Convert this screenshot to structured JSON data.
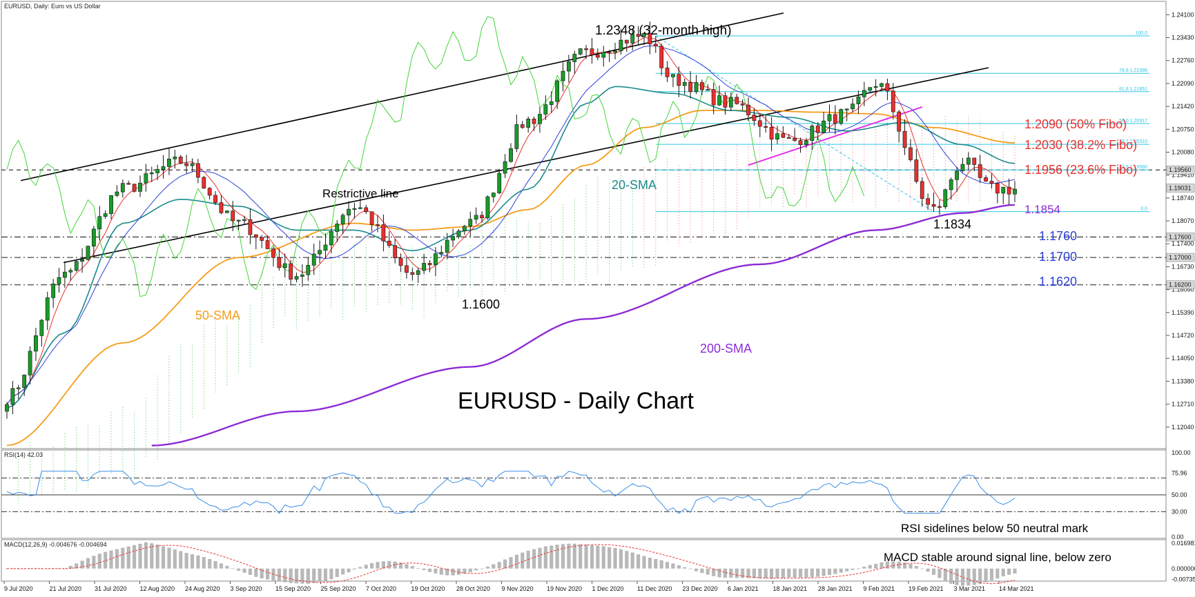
{
  "header": {
    "title": "EURUSD, Daily: Euro vs US Dollar"
  },
  "main_title": "EURUSD - Daily Chart",
  "rsi_header": "RSI(14) 42.03",
  "macd_header": "MACD(12,26,9) -0.004676 -0.004694",
  "rsi_note": "RSI sidelines below 50 neutral mark",
  "macd_note": "MACD stable around signal line, below zero",
  "colors": {
    "bull": "#1a9b2a",
    "bear": "#e8302e",
    "sma20": "#1a8a8a",
    "sma50": "#f59c1a",
    "sma200": "#8d2bd6",
    "tenkan": "#e8302e",
    "kijun": "#2b3fd6",
    "chikou": "#43d43a",
    "fibo": "#2ec4e6",
    "trend": "#000000",
    "channel": "#e22de6"
  },
  "chart_data": {
    "type": "candlestick",
    "instrument": "EURUSD",
    "timeframe": "Daily",
    "ylim": [
      1.1145,
      1.2445
    ],
    "price_axis_ticks": [
      "1.24100",
      "1.23430",
      "1.22760",
      "1.22090",
      "1.21420",
      "1.20750",
      "1.20080",
      "1.19410",
      "1.18740",
      "1.18070",
      "1.17400",
      "1.16730",
      "1.16060",
      "1.15390",
      "1.14720",
      "1.14050",
      "1.13380",
      "1.12710",
      "1.12040"
    ],
    "price_axis_tick_values": [
      1.241,
      1.2343,
      1.2276,
      1.2209,
      1.2142,
      1.2075,
      1.2008,
      1.1941,
      1.1874,
      1.1807,
      1.174,
      1.1673,
      1.1606,
      1.1539,
      1.1472,
      1.1405,
      1.1338,
      1.1271,
      1.1204
    ],
    "price_badges": [
      {
        "label": "1.19560",
        "value": 1.1956
      },
      {
        "label": "1.19031",
        "value": 1.19031
      },
      {
        "label": "1.17600",
        "value": 1.176
      },
      {
        "label": "1.17000",
        "value": 1.17
      },
      {
        "label": "1.16200",
        "value": 1.162
      }
    ],
    "x_axis_labels": [
      "9 Jul 2020",
      "21 Jul 2020",
      "31 Jul 2020",
      "12 Aug 2020",
      "24 Aug 2020",
      "3 Sep 2020",
      "15 Sep 2020",
      "25 Sep 2020",
      "7 Oct 2020",
      "19 Oct 2020",
      "28 Oct 2020",
      "9 Nov 2020",
      "19 Nov 2020",
      "1 Dec 2020",
      "11 Dec 2020",
      "23 Dec 2020",
      "6 Jan 2021",
      "18 Jan 2021",
      "28 Jan 2021",
      "9 Feb 2021",
      "19 Feb 2021",
      "3 Mar 2021",
      "14 Mar 2021"
    ],
    "series": [
      {
        "name": "EURUSD",
        "key_points": [
          [
            0,
            1.129
          ],
          [
            10,
            1.165
          ],
          [
            20,
            1.19
          ],
          [
            30,
            1.198
          ],
          [
            40,
            1.18
          ],
          [
            50,
            1.165
          ],
          [
            60,
            1.185
          ],
          [
            70,
            1.165
          ],
          [
            80,
            1.18
          ],
          [
            90,
            1.21
          ],
          [
            100,
            1.23
          ],
          [
            110,
            1.2348
          ],
          [
            115,
            1.222
          ],
          [
            125,
            1.215
          ],
          [
            135,
            1.204
          ],
          [
            145,
            1.212
          ],
          [
            150,
            1.221
          ],
          [
            160,
            1.184
          ],
          [
            165,
            1.198
          ],
          [
            170,
            1.19
          ],
          [
            174,
            1.19
          ]
        ]
      },
      {
        "name": "20-SMA",
        "key_points": [
          [
            0,
            1.126
          ],
          [
            10,
            1.148
          ],
          [
            20,
            1.18
          ],
          [
            30,
            1.187
          ],
          [
            40,
            1.185
          ],
          [
            50,
            1.178
          ],
          [
            60,
            1.178
          ],
          [
            70,
            1.172
          ],
          [
            80,
            1.178
          ],
          [
            90,
            1.19
          ],
          [
            100,
            1.215
          ],
          [
            105,
            1.22
          ],
          [
            115,
            1.218
          ],
          [
            125,
            1.213
          ],
          [
            135,
            1.211
          ],
          [
            145,
            1.207
          ],
          [
            155,
            1.2095
          ],
          [
            165,
            1.203
          ],
          [
            174,
            1.1975
          ]
        ]
      },
      {
        "name": "50-SMA",
        "key_points": [
          [
            0,
            1.115
          ],
          [
            20,
            1.145
          ],
          [
            40,
            1.17
          ],
          [
            60,
            1.18
          ],
          [
            70,
            1.178
          ],
          [
            80,
            1.179
          ],
          [
            90,
            1.184
          ],
          [
            100,
            1.197
          ],
          [
            110,
            1.208
          ],
          [
            120,
            1.213
          ],
          [
            130,
            1.213
          ],
          [
            140,
            1.2125
          ],
          [
            150,
            1.212
          ],
          [
            160,
            1.208
          ],
          [
            174,
            1.2035
          ]
        ]
      },
      {
        "name": "200-SMA",
        "key_points": [
          [
            25,
            1.115
          ],
          [
            50,
            1.125
          ],
          [
            80,
            1.138
          ],
          [
            100,
            1.152
          ],
          [
            130,
            1.168
          ],
          [
            150,
            1.178
          ],
          [
            165,
            1.183
          ],
          [
            174,
            1.1854
          ]
        ]
      }
    ],
    "annotations": [
      {
        "text": "1.2348 (32-month high)",
        "price": 1.2348
      },
      {
        "text": "Restrictive line"
      },
      {
        "text": "20-SMA"
      },
      {
        "text": "50-SMA"
      },
      {
        "text": "200-SMA"
      },
      {
        "text": "1.1600",
        "price": 1.16
      },
      {
        "text": "1.1834",
        "price": 1.1834
      },
      {
        "text": "1.2090 (50% Fibo)",
        "price": 1.209
      },
      {
        "text": "1.2030 (38.2% Fibo)",
        "price": 1.203
      },
      {
        "text": "1.1956 (23.6% Fibo)",
        "price": 1.1956
      },
      {
        "text": "1.1854",
        "price": 1.1854
      },
      {
        "text": "1.1760",
        "price": 1.176
      },
      {
        "text": "1.1700",
        "price": 1.17
      },
      {
        "text": "1.1620",
        "price": 1.162
      }
    ],
    "fibo_levels": [
      {
        "label": "100.0",
        "value": 1.2348
      },
      {
        "label": "78.6 1.22386",
        "value": 1.22386
      },
      {
        "label": "61.8 1.21851",
        "value": 1.21851
      },
      {
        "label": "50.0 1.20917",
        "value": 1.20917
      },
      {
        "label": "38.2 1.20310",
        "value": 1.2031
      },
      {
        "label": "23.6 1.19560",
        "value": 1.1956
      },
      {
        "label": "0.0",
        "value": 1.1834
      }
    ],
    "rsi": {
      "period": 14,
      "value": 42.03,
      "ylim": [
        0,
        100
      ],
      "ticks": [
        "100.00",
        "75.96",
        "50.00",
        "30.00",
        "0.00"
      ],
      "tick_values": [
        100,
        75.96,
        50,
        30,
        0
      ],
      "levels": [
        70,
        50,
        30
      ]
    },
    "macd": {
      "fast": 12,
      "slow": 26,
      "signal": 9,
      "main": -0.004676,
      "signal_value": -0.004694,
      "ylim": [
        -0.0075,
        0.0175
      ],
      "ticks": [
        "0.016981",
        "0.000000",
        "-0.007356"
      ],
      "tick_values": [
        0.016981,
        0,
        -0.007356
      ]
    }
  }
}
